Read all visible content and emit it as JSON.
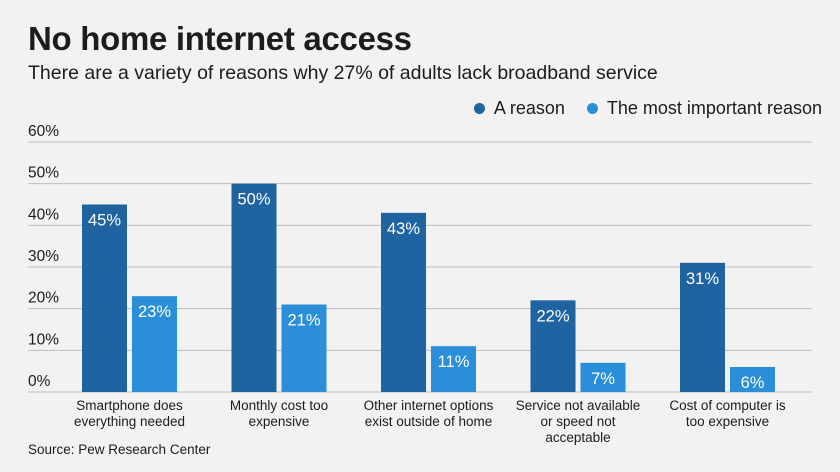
{
  "title": "No home internet access",
  "subtitle": "There are a variety of reasons why 27% of adults lack broadband service",
  "source": "Source: Pew Research Center",
  "colors": {
    "a_reason": "#1f63a1",
    "most_important": "#2a8fd8",
    "grid": "#bdbdbd",
    "label": "#ffffff"
  },
  "chart_data": {
    "type": "bar",
    "title": "No home internet access",
    "subtitle": "There are a variety of reasons why 27% of adults lack broadband service",
    "categories": [
      [
        "Smartphone does",
        "everything needed"
      ],
      [
        "Monthly cost too",
        "expensive"
      ],
      [
        "Other internet options",
        "exist outside of home"
      ],
      [
        "Service not available",
        "or speed not",
        "acceptable"
      ],
      [
        "Cost of computer is",
        "too expensive"
      ]
    ],
    "series": [
      {
        "name": "A reason",
        "values": [
          45,
          50,
          43,
          22,
          31
        ]
      },
      {
        "name": "The most important reason",
        "values": [
          23,
          21,
          11,
          7,
          6
        ]
      }
    ],
    "ylim": [
      0,
      60
    ],
    "yticks": [
      0,
      10,
      20,
      30,
      40,
      50,
      60
    ],
    "ytick_labels": [
      "0%",
      "10%",
      "20%",
      "30%",
      "40%",
      "50%",
      "60%"
    ],
    "value_labels": [
      [
        "45%",
        "50%",
        "43%",
        "22%",
        "31%"
      ],
      [
        "23%",
        "21%",
        "11%",
        "7%",
        "6%"
      ]
    ],
    "legend_position": "top-right",
    "grid": true
  }
}
